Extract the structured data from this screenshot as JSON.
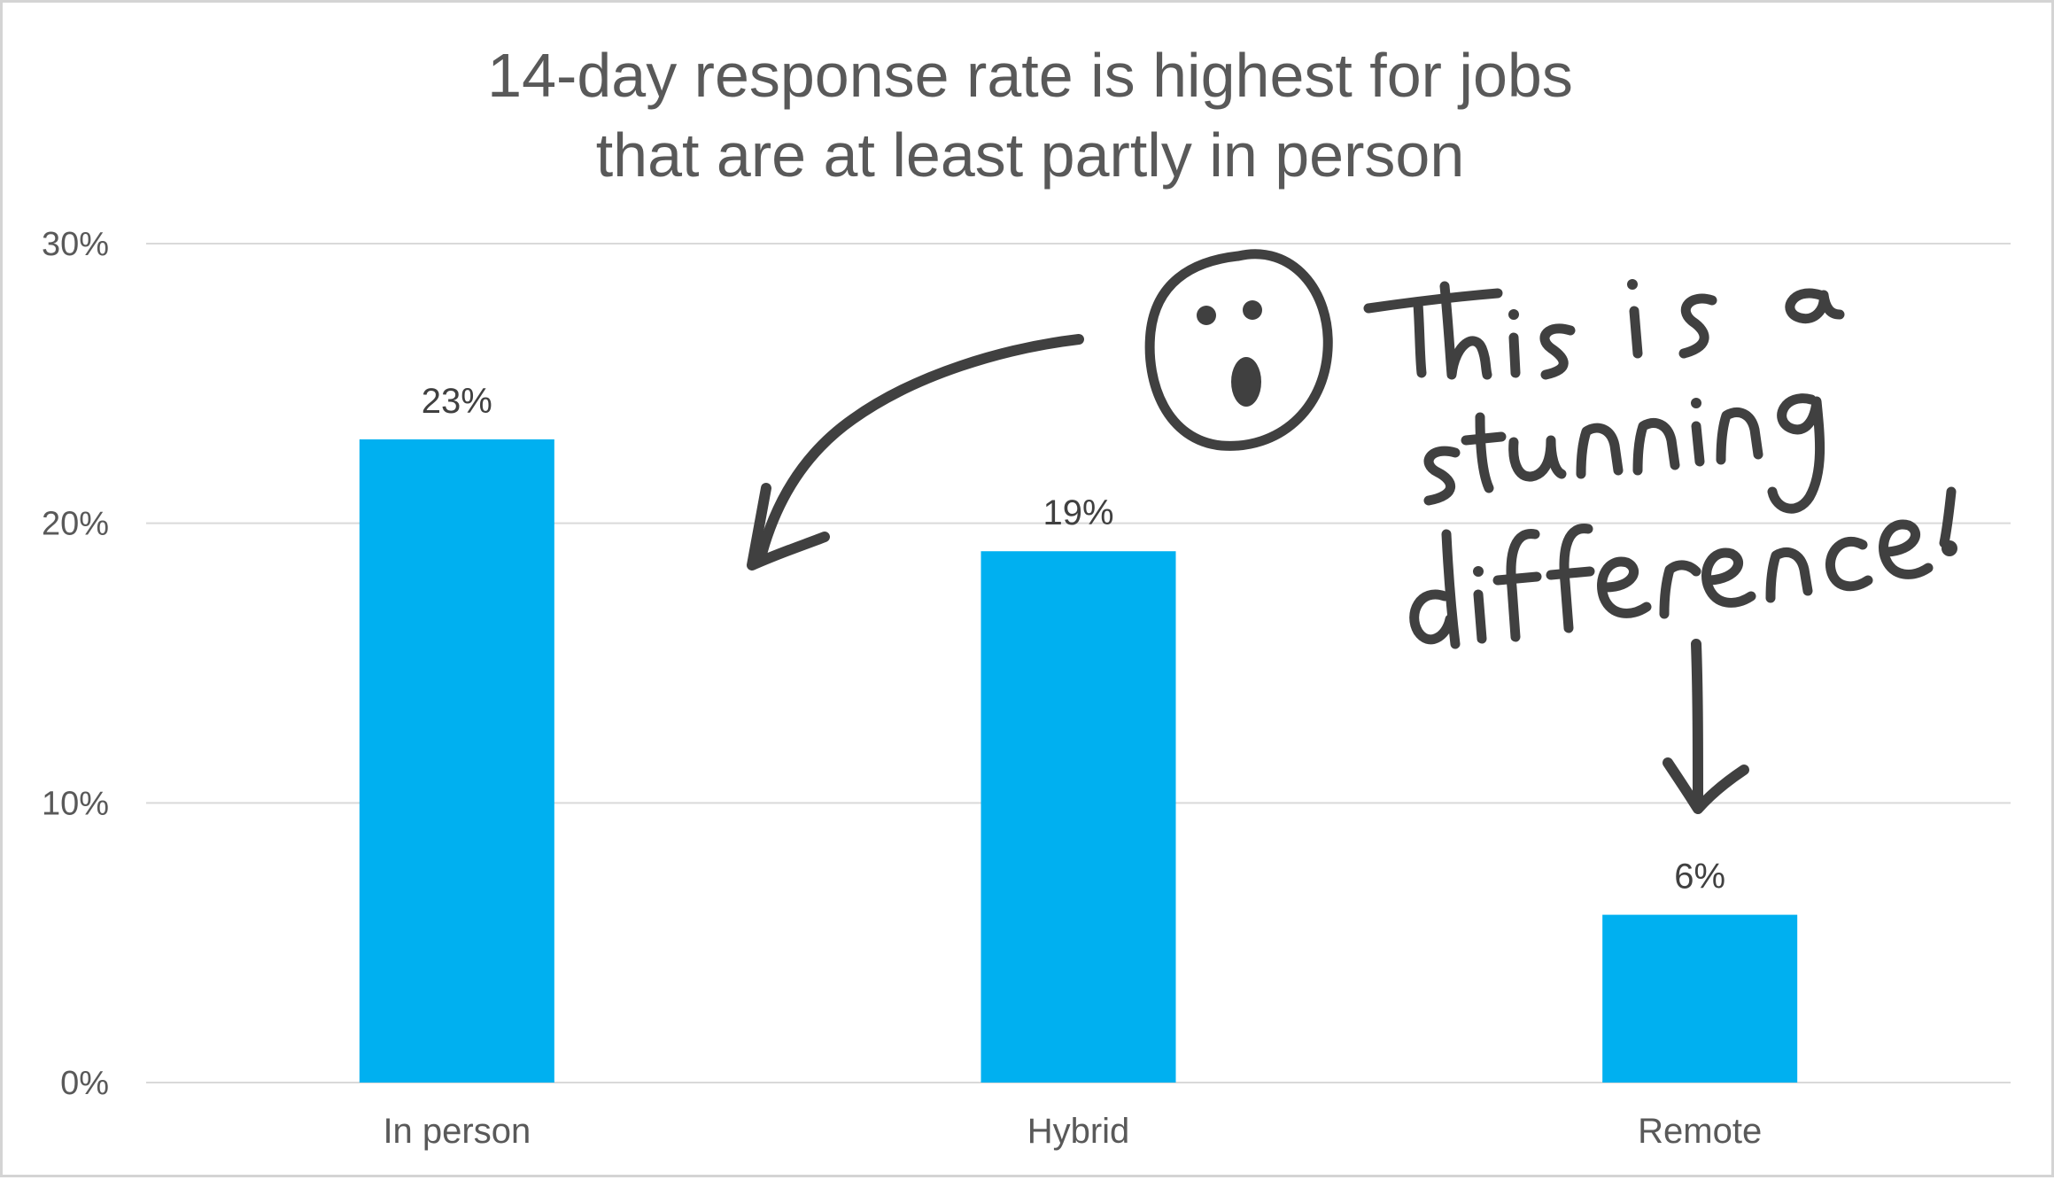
{
  "chart_data": {
    "type": "bar",
    "title": "14-day response rate is highest for jobs that are at least partly in person",
    "title_lines": [
      "14-day response rate is highest for jobs",
      "that are at least partly in person"
    ],
    "categories": [
      "In person",
      "Hybrid",
      "Remote"
    ],
    "values": [
      23,
      19,
      6
    ],
    "data_labels": [
      "23%",
      "19%",
      "6%"
    ],
    "y_ticks": [
      "0%",
      "10%",
      "20%",
      "30%"
    ],
    "ylim": [
      0,
      30
    ],
    "grid": true,
    "bar_color": "#00b0f0",
    "annotation": "This is a stunning difference!"
  }
}
